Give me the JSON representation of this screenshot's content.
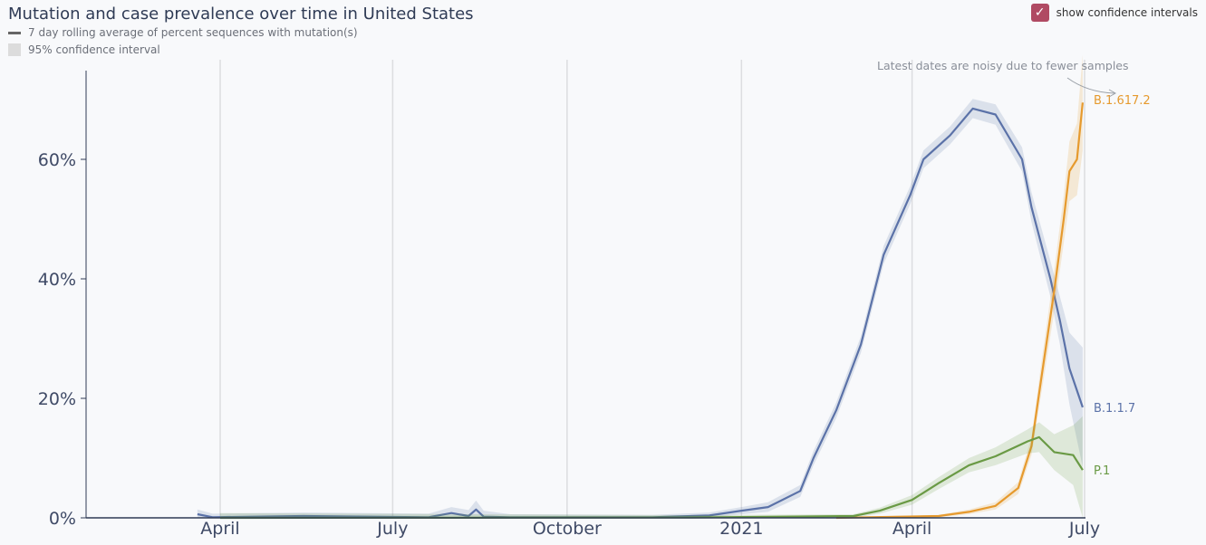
{
  "header": {
    "title": "Mutation and case prevalence over time in United States",
    "legend_line": "7 day rolling average of percent sequences with mutation(s)",
    "legend_ci": "95% confidence interval",
    "ci_toggle_label": "show confidence intervals",
    "ci_toggle_checked": true
  },
  "chart_data": {
    "type": "line",
    "title": "Mutation and case prevalence over time in United States",
    "xlabel": "",
    "ylabel": "",
    "ylim": [
      0,
      75
    ],
    "xlim": [
      "2020-03-01",
      "2021-07-01"
    ],
    "y_ticks": [
      {
        "v": 0,
        "label": "0%"
      },
      {
        "v": 20,
        "label": "20%"
      },
      {
        "v": 40,
        "label": "40%"
      },
      {
        "v": 60,
        "label": "60%"
      }
    ],
    "x_ticks": [
      {
        "date": "2020-04-01",
        "label": "April"
      },
      {
        "date": "2020-07-01",
        "label": "July"
      },
      {
        "date": "2020-10-01",
        "label": "October"
      },
      {
        "date": "2021-01-01",
        "label": "2021"
      },
      {
        "date": "2021-04-01",
        "label": "April"
      },
      {
        "date": "2021-07-01",
        "label": "July"
      }
    ],
    "grid": "vertical",
    "annotation": "Latest dates are noisy due to fewer samples",
    "series": [
      {
        "name": "B.1.1.7",
        "color": "#5b72a8",
        "dates": [
          "2020-03-20",
          "2020-03-28",
          "2020-05-15",
          "2020-07-20",
          "2020-08-01",
          "2020-08-10",
          "2020-08-14",
          "2020-08-18",
          "2020-09-01",
          "2020-11-15",
          "2020-12-15",
          "2021-01-01",
          "2021-01-15",
          "2021-02-01",
          "2021-02-08",
          "2021-02-20",
          "2021-03-05",
          "2021-03-17",
          "2021-03-31",
          "2021-04-07",
          "2021-04-21",
          "2021-05-03",
          "2021-05-15",
          "2021-05-29",
          "2021-06-03",
          "2021-06-13",
          "2021-06-18",
          "2021-06-23",
          "2021-06-30"
        ],
        "values": [
          0.6,
          0.1,
          0.3,
          0.1,
          0.8,
          0.3,
          1.4,
          0.2,
          0.1,
          0.1,
          0.4,
          1.2,
          1.8,
          4.5,
          10,
          18,
          29,
          44,
          54,
          60,
          64,
          68.5,
          67.5,
          60,
          52,
          40,
          33,
          25,
          18.5
        ],
        "ci": [
          0.8,
          0.6,
          0.6,
          0.6,
          1,
          1,
          1.5,
          1,
          0.5,
          0.4,
          0.5,
          0.6,
          0.8,
          1,
          1.2,
          1.3,
          1.4,
          1.5,
          1.5,
          1.5,
          1.5,
          1.6,
          1.7,
          2,
          2.5,
          3,
          4,
          6,
          10
        ]
      },
      {
        "name": "B.1.617.2",
        "color": "#e69a2e",
        "dates": [
          "2021-02-20",
          "2021-04-15",
          "2021-05-01",
          "2021-05-15",
          "2021-05-27",
          "2021-06-03",
          "2021-06-08",
          "2021-06-15",
          "2021-06-20",
          "2021-06-23",
          "2021-06-27",
          "2021-06-30"
        ],
        "values": [
          0,
          0.3,
          1,
          2,
          5,
          12,
          23,
          38,
          50,
          58,
          60,
          69.5
        ],
        "ci": [
          0.1,
          0.2,
          0.4,
          0.6,
          1,
          1.5,
          2.5,
          3.5,
          4,
          5,
          6,
          8
        ]
      },
      {
        "name": "P.1",
        "color": "#6a9a45",
        "dates": [
          "2020-04-01",
          "2020-12-01",
          "2021-03-01",
          "2021-03-15",
          "2021-04-01",
          "2021-04-15",
          "2021-05-01",
          "2021-05-15",
          "2021-06-01",
          "2021-06-07",
          "2021-06-15",
          "2021-06-25",
          "2021-06-30"
        ],
        "values": [
          0,
          0.05,
          0.3,
          1.2,
          3,
          5.8,
          8.8,
          10.3,
          12.8,
          13.5,
          11,
          10.5,
          8
        ],
        "ci": [
          0.8,
          0.4,
          0.3,
          0.5,
          0.8,
          1,
          1.2,
          1.5,
          2,
          2.5,
          3,
          5,
          9
        ]
      }
    ]
  }
}
